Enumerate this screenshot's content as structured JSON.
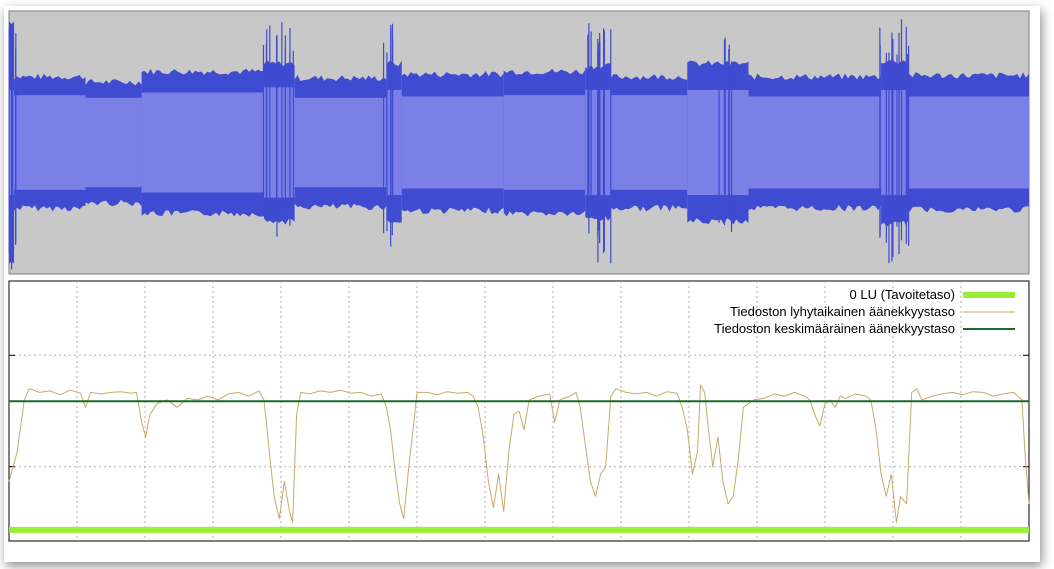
{
  "chart_data": [
    {
      "type": "area",
      "title": "",
      "description_role": "waveform",
      "xlim": [
        0,
        100
      ],
      "ylim": [
        -1,
        1
      ],
      "segments": [
        {
          "x0": 0.0,
          "x1": 0.5,
          "outer": 0.92,
          "inner": 0.4
        },
        {
          "x0": 0.5,
          "x1": 7.5,
          "outer": 0.5,
          "inner": 0.36
        },
        {
          "x0": 7.5,
          "x1": 13.0,
          "outer": 0.46,
          "inner": 0.34
        },
        {
          "x0": 13.0,
          "x1": 25.0,
          "outer": 0.54,
          "inner": 0.38
        },
        {
          "x0": 25.0,
          "x1": 28.0,
          "outer": 0.6,
          "inner": 0.42
        },
        {
          "x0": 28.0,
          "x1": 37.0,
          "outer": 0.49,
          "inner": 0.34
        },
        {
          "x0": 37.0,
          "x1": 38.5,
          "outer": 0.6,
          "inner": 0.4
        },
        {
          "x0": 38.5,
          "x1": 48.5,
          "outer": 0.52,
          "inner": 0.35
        },
        {
          "x0": 48.5,
          "x1": 56.5,
          "outer": 0.54,
          "inner": 0.36
        },
        {
          "x0": 56.5,
          "x1": 59.0,
          "outer": 0.58,
          "inner": 0.4
        },
        {
          "x0": 59.0,
          "x1": 66.5,
          "outer": 0.5,
          "inner": 0.36
        },
        {
          "x0": 66.5,
          "x1": 72.5,
          "outer": 0.6,
          "inner": 0.4
        },
        {
          "x0": 72.5,
          "x1": 85.5,
          "outer": 0.5,
          "inner": 0.35
        },
        {
          "x0": 85.5,
          "x1": 88.0,
          "outer": 0.62,
          "inner": 0.4
        },
        {
          "x0": 88.0,
          "x1": 100.0,
          "outer": 0.51,
          "inner": 0.35
        }
      ],
      "peaks": [
        {
          "x": 0.3,
          "top": 0.98,
          "bottom": 0.98
        },
        {
          "x": 25.6,
          "top": 0.97,
          "bottom": 0.72
        },
        {
          "x": 27.3,
          "top": 0.95,
          "bottom": 0.65
        },
        {
          "x": 37.4,
          "top": 0.92,
          "bottom": 0.8
        },
        {
          "x": 57.4,
          "top": 0.93,
          "bottom": 0.72
        },
        {
          "x": 58.4,
          "top": 0.9,
          "bottom": 0.95
        },
        {
          "x": 70.2,
          "top": 0.8,
          "bottom": 0.7
        },
        {
          "x": 86.0,
          "top": 0.97,
          "bottom": 0.95
        },
        {
          "x": 87.6,
          "top": 0.95,
          "bottom": 0.85
        }
      ],
      "colors": {
        "background": "#c8c8c8",
        "outer": "#3f4bd0",
        "inner": "#7b80e6"
      }
    },
    {
      "type": "line",
      "title": "",
      "xlim": [
        0,
        100
      ],
      "ylim": [
        -30,
        5
      ],
      "grid": true,
      "legend_position": "top-right",
      "series": [
        {
          "name": "0 LU (Tavoitetaso)",
          "color": "#99ee33",
          "width": 6,
          "values": [
            [
              0,
              -28.5
            ],
            [
              100,
              -28.5
            ]
          ]
        },
        {
          "name": "Tiedoston lyhytaikainen äänekkyystaso",
          "color": "#c8a96a",
          "width": 1,
          "values": [
            [
              0,
              -22
            ],
            [
              0.8,
              -18
            ],
            [
              1.5,
              -11
            ],
            [
              2,
              -9.5
            ],
            [
              3,
              -10
            ],
            [
              4,
              -9.8
            ],
            [
              5,
              -10.3
            ],
            [
              6,
              -9.7
            ],
            [
              7,
              -10.1
            ],
            [
              7.5,
              -12
            ],
            [
              8,
              -10
            ],
            [
              9,
              -10.2
            ],
            [
              10,
              -10
            ],
            [
              11,
              -9.9
            ],
            [
              12,
              -10.1
            ],
            [
              12.5,
              -10
            ],
            [
              13,
              -14
            ],
            [
              13.4,
              -16
            ],
            [
              13.8,
              -13
            ],
            [
              14.5,
              -11.5
            ],
            [
              15.5,
              -11
            ],
            [
              16.5,
              -12
            ],
            [
              17.5,
              -10.8
            ],
            [
              18.5,
              -11
            ],
            [
              19.5,
              -10.5
            ],
            [
              20.5,
              -11
            ],
            [
              21.5,
              -10.2
            ],
            [
              22.5,
              -10
            ],
            [
              23.5,
              -10.5
            ],
            [
              24.5,
              -9.8
            ],
            [
              25,
              -11
            ],
            [
              25.3,
              -15
            ],
            [
              25.6,
              -19
            ],
            [
              26,
              -24
            ],
            [
              26.5,
              -27
            ],
            [
              27,
              -22
            ],
            [
              27.5,
              -26
            ],
            [
              27.8,
              -27.5
            ],
            [
              28.2,
              -13
            ],
            [
              28.6,
              -10
            ],
            [
              29.5,
              -10.2
            ],
            [
              30.5,
              -9.8
            ],
            [
              31.5,
              -10
            ],
            [
              32.5,
              -9.7
            ],
            [
              33.5,
              -10.1
            ],
            [
              34.5,
              -10
            ],
            [
              35.5,
              -10.5
            ],
            [
              36.5,
              -10.2
            ],
            [
              37,
              -12
            ],
            [
              37.4,
              -15
            ],
            [
              37.8,
              -20
            ],
            [
              38.3,
              -25
            ],
            [
              38.7,
              -27
            ],
            [
              39.2,
              -20
            ],
            [
              39.7,
              -14
            ],
            [
              40,
              -10
            ],
            [
              41,
              -10
            ],
            [
              42,
              -10.3
            ],
            [
              43,
              -9.9
            ],
            [
              44,
              -10.1
            ],
            [
              45,
              -10
            ],
            [
              45.5,
              -10.5
            ],
            [
              46,
              -12
            ],
            [
              46.5,
              -16
            ],
            [
              47,
              -22
            ],
            [
              47.5,
              -25.5
            ],
            [
              48,
              -21
            ],
            [
              48.5,
              -26
            ],
            [
              49,
              -18
            ],
            [
              49.5,
              -13
            ],
            [
              50,
              -12.5
            ],
            [
              50.5,
              -15
            ],
            [
              51,
              -11
            ],
            [
              52,
              -10.5
            ],
            [
              53,
              -10.2
            ],
            [
              53.5,
              -14
            ],
            [
              54,
              -11
            ],
            [
              55,
              -10.5
            ],
            [
              55.6,
              -10
            ],
            [
              56,
              -12
            ],
            [
              56.5,
              -17
            ],
            [
              57,
              -22
            ],
            [
              57.5,
              -24
            ],
            [
              58,
              -21
            ],
            [
              58.5,
              -20
            ],
            [
              59,
              -10.5
            ],
            [
              59.5,
              -9.5
            ],
            [
              60.5,
              -10
            ],
            [
              61.5,
              -10.2
            ],
            [
              62.5,
              -10
            ],
            [
              63.5,
              -10.5
            ],
            [
              64.5,
              -9.9
            ],
            [
              65.5,
              -10.1
            ],
            [
              66,
              -12
            ],
            [
              66.5,
              -15
            ],
            [
              67,
              -21
            ],
            [
              67.5,
              -18
            ],
            [
              67.8,
              -9
            ],
            [
              68.2,
              -10
            ],
            [
              68.5,
              -14
            ],
            [
              69,
              -20
            ],
            [
              69.5,
              -16
            ],
            [
              70,
              -22
            ],
            [
              70.5,
              -25
            ],
            [
              71,
              -24
            ],
            [
              71.5,
              -19
            ],
            [
              72,
              -12
            ],
            [
              72.5,
              -11.5
            ],
            [
              73,
              -11
            ],
            [
              74,
              -10.8
            ],
            [
              75,
              -10.2
            ],
            [
              76,
              -10.5
            ],
            [
              77,
              -10
            ],
            [
              78,
              -10.5
            ],
            [
              78.5,
              -11
            ],
            [
              79,
              -13
            ],
            [
              79.5,
              -14.5
            ],
            [
              80,
              -11.5
            ],
            [
              80.5,
              -11
            ],
            [
              81,
              -12
            ],
            [
              81.5,
              -10.5
            ],
            [
              82,
              -10.8
            ],
            [
              83,
              -10.2
            ],
            [
              84,
              -10.5
            ],
            [
              84.5,
              -11
            ],
            [
              85,
              -15
            ],
            [
              85.5,
              -21
            ],
            [
              86,
              -24
            ],
            [
              86.5,
              -21
            ],
            [
              87,
              -27.5
            ],
            [
              87.4,
              -24
            ],
            [
              88,
              -25
            ],
            [
              88.5,
              -10
            ],
            [
              89,
              -9.5
            ],
            [
              89.5,
              -11
            ],
            [
              90.5,
              -10.5
            ],
            [
              91.5,
              -10.2
            ],
            [
              92.5,
              -10
            ],
            [
              93.5,
              -10.3
            ],
            [
              94.5,
              -9.9
            ],
            [
              95.5,
              -10
            ],
            [
              96.5,
              -10.5
            ],
            [
              97.5,
              -10.2
            ],
            [
              98.5,
              -10
            ],
            [
              99.3,
              -11
            ],
            [
              99.6,
              -18
            ],
            [
              100,
              -25
            ]
          ]
        },
        {
          "name": "Tiedoston keskimääräinen äänekkyystaso",
          "color": "#1a6b2a",
          "width": 2,
          "values": [
            [
              0,
              -11.2
            ],
            [
              100,
              -11.2
            ]
          ]
        }
      ]
    }
  ]
}
